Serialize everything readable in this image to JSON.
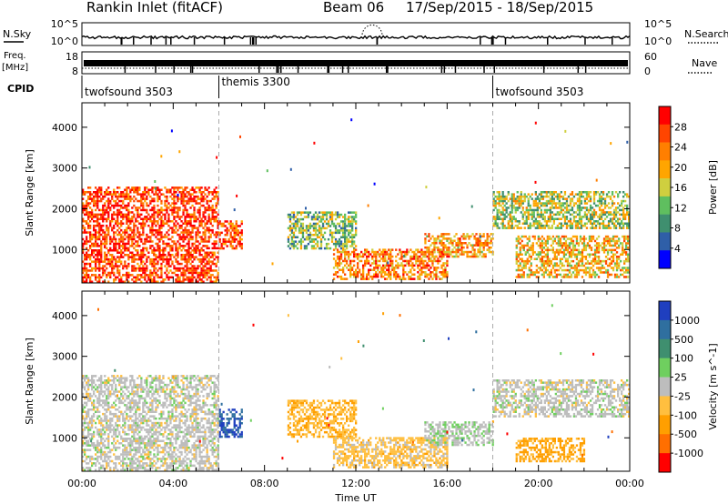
{
  "header": {
    "station": "Rankin Inlet (fitACF)",
    "beam": "Beam 06",
    "date_range": "17/Sep/2015 - 18/Sep/2015"
  },
  "top_strip": {
    "nsky_label": "N.Sky",
    "nsearch_label": "N.Search",
    "freq_label_1": "Freq.",
    "freq_label_2": "[MHz]",
    "nave_label": "Nave",
    "cpid_label": "CPID",
    "left_ticks_top": [
      "10^5",
      "10^0"
    ],
    "right_ticks_top": [
      "10^5",
      "10^0"
    ],
    "left_ticks_freq": [
      "18",
      "8"
    ],
    "right_ticks_nave": [
      "60",
      "0"
    ]
  },
  "cpid_segments": [
    {
      "label": "twofsound 3503",
      "start_hour": 0
    },
    {
      "label": "themis 3300",
      "start_hour": 6
    },
    {
      "label": "twofsound 3503",
      "start_hour": 18
    }
  ],
  "colors": {
    "power_scale": [
      "#0000ff",
      "#2f5fa8",
      "#3f8f6f",
      "#5fbf5f",
      "#cfcf3f",
      "#ffa500",
      "#ff7f00",
      "#ff4500",
      "#ff0000"
    ],
    "velocity_scale": [
      "#1f3fbf",
      "#2f6f9f",
      "#3f8f6f",
      "#6fcf5f",
      "#bdbdbd",
      "#ffbf3f",
      "#ff9f00",
      "#ff6f00",
      "#ff0000"
    ]
  },
  "chart_data": [
    {
      "type": "heatmap",
      "title": "",
      "xlabel": "Time UT",
      "ylabel": "Slant Range [km]",
      "xlim": [
        0,
        24
      ],
      "ylim": [
        180,
        4600
      ],
      "x_ticks": [
        "00:00",
        "04:00",
        "08:00",
        "12:00",
        "16:00",
        "20:00",
        "00:00"
      ],
      "y_ticks": [
        1000,
        2000,
        3000,
        4000
      ],
      "colorbar": {
        "label": "Power [dB]",
        "ticks": [
          "4",
          "8",
          "12",
          "16",
          "20",
          "24",
          "28"
        ],
        "range": [
          0,
          30
        ]
      },
      "echo_regions": [
        {
          "t_start": 0,
          "t_end": 6,
          "r_start": 180,
          "r_end": 2500,
          "value": 26
        },
        {
          "t_start": 6,
          "t_end": 7,
          "r_start": 1000,
          "r_end": 1700,
          "value": 24
        },
        {
          "t_start": 9,
          "t_end": 12,
          "r_start": 1000,
          "r_end": 1900,
          "value": 12
        },
        {
          "t_start": 11,
          "t_end": 16,
          "r_start": 250,
          "r_end": 1000,
          "value": 22
        },
        {
          "t_start": 15,
          "t_end": 18,
          "r_start": 800,
          "r_end": 1400,
          "value": 20
        },
        {
          "t_start": 18,
          "t_end": 24,
          "r_start": 1500,
          "r_end": 2400,
          "value": 14
        },
        {
          "t_start": 19,
          "t_end": 24,
          "r_start": 300,
          "r_end": 1300,
          "value": 18
        }
      ]
    },
    {
      "type": "heatmap",
      "title": "",
      "xlabel": "Time UT",
      "ylabel": "Slant Range [km]",
      "xlim": [
        0,
        24
      ],
      "ylim": [
        180,
        4600
      ],
      "x_ticks": [
        "00:00",
        "04:00",
        "08:00",
        "12:00",
        "16:00",
        "20:00",
        "00:00"
      ],
      "y_ticks": [
        1000,
        2000,
        3000,
        4000
      ],
      "colorbar": {
        "label": "Velocity [m s^-1]",
        "ticks": [
          "1000",
          "500",
          "100",
          "25",
          "-25",
          "-100",
          "-500",
          "-1000"
        ],
        "range": [
          -1000,
          1000
        ]
      },
      "echo_regions": [
        {
          "t_start": 0,
          "t_end": 6,
          "r_start": 180,
          "r_end": 2500,
          "value": 0
        },
        {
          "t_start": 6,
          "t_end": 7,
          "r_start": 1000,
          "r_end": 1700,
          "value": 800
        },
        {
          "t_start": 9,
          "t_end": 12,
          "r_start": 1000,
          "r_end": 1900,
          "value": -300
        },
        {
          "t_start": 11,
          "t_end": 16,
          "r_start": 250,
          "r_end": 1000,
          "value": -200
        },
        {
          "t_start": 15,
          "t_end": 18,
          "r_start": 800,
          "r_end": 1400,
          "value": 60
        },
        {
          "t_start": 18,
          "t_end": 24,
          "r_start": 1500,
          "r_end": 2400,
          "value": 0
        },
        {
          "t_start": 19,
          "t_end": 22,
          "r_start": 400,
          "r_end": 1000,
          "value": -400
        }
      ]
    }
  ]
}
